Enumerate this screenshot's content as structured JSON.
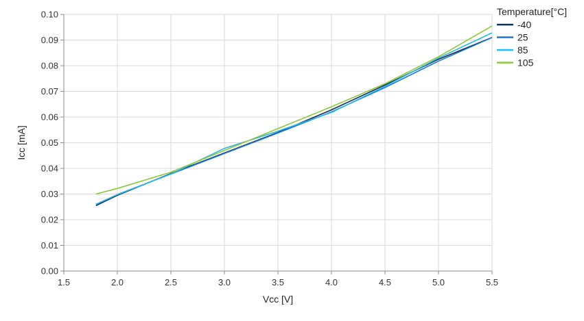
{
  "chart_data": {
    "type": "line",
    "xlabel": "Vcc [V]",
    "ylabel": "Icc [mA]",
    "xlim": [
      1.5,
      5.5
    ],
    "ylim": [
      0.0,
      0.1
    ],
    "x_ticks": [
      "1.5",
      "2.0",
      "2.5",
      "3.0",
      "3.5",
      "4.0",
      "4.5",
      "5.0",
      "5.5"
    ],
    "y_ticks": [
      "0.00",
      "0.01",
      "0.02",
      "0.03",
      "0.04",
      "0.05",
      "0.06",
      "0.07",
      "0.08",
      "0.09",
      "0.10"
    ],
    "grid": true,
    "legend_title": "Temperature[°C]",
    "legend_position": "top-right",
    "series": [
      {
        "name": "-40",
        "color": "#0b2e59",
        "x": [
          1.8,
          2.0,
          2.5,
          3.0,
          3.5,
          4.0,
          4.5,
          5.0,
          5.5
        ],
        "y": [
          0.0255,
          0.0295,
          0.038,
          0.046,
          0.054,
          0.0628,
          0.0725,
          0.0825,
          0.091
        ]
      },
      {
        "name": "25",
        "color": "#1f77c9",
        "x": [
          1.8,
          2.0,
          2.5,
          3.0,
          3.5,
          4.0,
          4.5,
          5.0,
          5.5
        ],
        "y": [
          0.026,
          0.0298,
          0.0378,
          0.0458,
          0.0538,
          0.062,
          0.0715,
          0.0818,
          0.091
        ]
      },
      {
        "name": "85",
        "color": "#2bb4ec",
        "x": [
          1.8,
          2.0,
          2.5,
          3.0,
          3.5,
          4.0,
          4.5,
          5.0,
          5.5
        ],
        "y": [
          0.026,
          0.0298,
          0.0378,
          0.0478,
          0.0545,
          0.0618,
          0.072,
          0.083,
          0.0928
        ]
      },
      {
        "name": "105",
        "color": "#8dc63f",
        "x": [
          1.8,
          2.0,
          2.5,
          3.0,
          3.5,
          4.0,
          4.5,
          5.0,
          5.5
        ],
        "y": [
          0.03,
          0.0322,
          0.0385,
          0.047,
          0.0555,
          0.064,
          0.073,
          0.0835,
          0.0955
        ]
      }
    ]
  }
}
